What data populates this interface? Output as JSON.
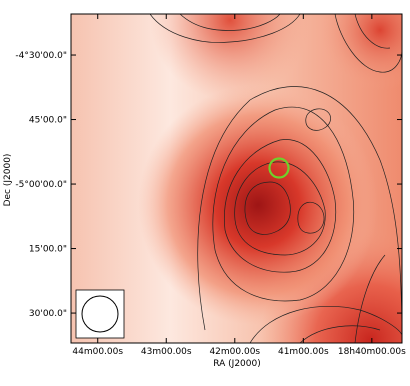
{
  "chart_data": {
    "type": "image",
    "x_label": "RA (J2000)",
    "y_label": "Dec (J2000)",
    "xlim": [
      44.39,
      39.56
    ],
    "ylim": [
      -5.616,
      -4.341
    ],
    "xticks": [
      {
        "value": 44,
        "label": "44m00.00s"
      },
      {
        "value": 43,
        "label": "43m00.00s"
      },
      {
        "value": 42,
        "label": "42m00.00s"
      },
      {
        "value": 41,
        "label": "41m00.00s"
      },
      {
        "value": 40,
        "label": "18h40m00.00s"
      }
    ],
    "yticks": [
      {
        "value": -4.5,
        "label": "-4°30'00.0\""
      },
      {
        "value": -4.75,
        "label": "45'00.0\""
      },
      {
        "value": -5.0,
        "label": "-5°00'00.0\""
      },
      {
        "value": -5.25,
        "label": "15'00.0\""
      },
      {
        "value": -5.5,
        "label": "30'00.0\""
      }
    ]
  }
}
